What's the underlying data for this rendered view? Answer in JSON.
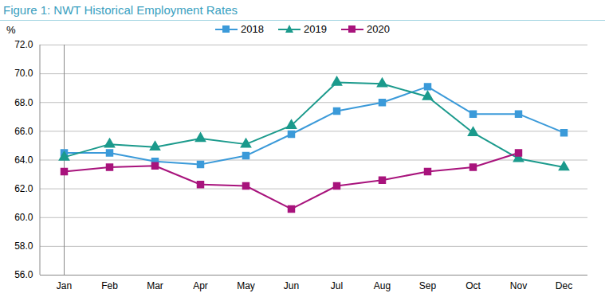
{
  "chart_data": {
    "type": "line",
    "title": "Figure 1: NWT Historical Employment Rates",
    "y_label": "%",
    "categories": [
      "Jan",
      "Feb",
      "Mar",
      "Apr",
      "May",
      "Jun",
      "Jul",
      "Aug",
      "Sep",
      "Oct",
      "Nov",
      "Dec"
    ],
    "series": [
      {
        "name": "2018",
        "color": "#3b9ad9",
        "marker": "square",
        "values": [
          64.5,
          64.5,
          63.9,
          63.7,
          64.3,
          65.8,
          67.4,
          68.0,
          69.1,
          67.2,
          67.2,
          65.9
        ]
      },
      {
        "name": "2019",
        "color": "#1b9a8c",
        "marker": "triangle",
        "values": [
          64.2,
          65.1,
          64.9,
          65.5,
          65.1,
          66.4,
          69.4,
          69.3,
          68.4,
          65.9,
          64.1,
          63.5
        ]
      },
      {
        "name": "2020",
        "color": "#a8137c",
        "marker": "square",
        "values": [
          63.2,
          63.5,
          63.6,
          62.3,
          62.2,
          60.6,
          62.2,
          62.6,
          63.2,
          63.5,
          64.5,
          null
        ]
      }
    ],
    "ylim": [
      56,
      72
    ],
    "yticks": [
      {
        "value": 56,
        "label": "56.0"
      },
      {
        "value": 58,
        "label": "58.0"
      },
      {
        "value": 60,
        "label": "60.0"
      },
      {
        "value": 62,
        "label": "62.0"
      },
      {
        "value": 64,
        "label": "64.0"
      },
      {
        "value": 66,
        "label": "66.0"
      },
      {
        "value": 68,
        "label": "68.0"
      },
      {
        "value": 70,
        "label": "70.0"
      },
      {
        "value": 72,
        "label": "72.0"
      }
    ],
    "grid": true,
    "legend": "top"
  }
}
